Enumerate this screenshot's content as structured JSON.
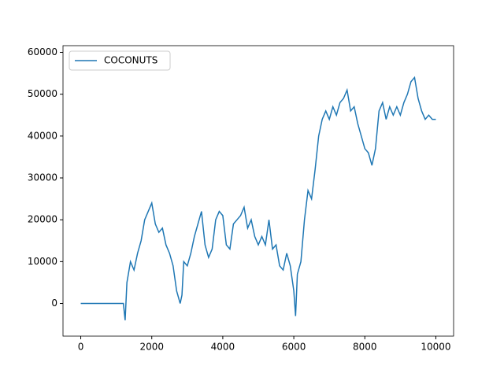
{
  "chart_data": {
    "type": "line",
    "x": [
      0,
      200,
      400,
      600,
      800,
      1000,
      1200,
      1250,
      1300,
      1400,
      1500,
      1600,
      1700,
      1800,
      1900,
      2000,
      2100,
      2200,
      2300,
      2400,
      2500,
      2600,
      2700,
      2800,
      2850,
      2900,
      3000,
      3100,
      3200,
      3300,
      3400,
      3500,
      3600,
      3700,
      3800,
      3900,
      4000,
      4100,
      4200,
      4300,
      4400,
      4500,
      4600,
      4700,
      4800,
      4900,
      5000,
      5100,
      5200,
      5300,
      5400,
      5500,
      5600,
      5700,
      5800,
      5900,
      6000,
      6050,
      6100,
      6200,
      6300,
      6400,
      6500,
      6600,
      6700,
      6800,
      6900,
      7000,
      7100,
      7200,
      7300,
      7400,
      7500,
      7600,
      7700,
      7800,
      7900,
      8000,
      8100,
      8200,
      8300,
      8400,
      8500,
      8600,
      8700,
      8800,
      8900,
      9000,
      9100,
      9200,
      9300,
      9400,
      9500,
      9600,
      9700,
      9800,
      9900,
      10000
    ],
    "series": [
      {
        "name": "COCONUTS",
        "color": "#1f77b4",
        "values": [
          0,
          0,
          0,
          0,
          0,
          0,
          0,
          -4000,
          5000,
          10000,
          8000,
          12000,
          15000,
          20000,
          22000,
          24000,
          19000,
          17000,
          18000,
          14000,
          12000,
          9000,
          3000,
          0,
          2000,
          10000,
          9000,
          12000,
          16000,
          19000,
          22000,
          14000,
          11000,
          13000,
          20000,
          22000,
          21000,
          14000,
          13000,
          19000,
          20000,
          21000,
          23000,
          18000,
          20000,
          16000,
          14000,
          16000,
          14000,
          20000,
          13000,
          14000,
          9000,
          8000,
          12000,
          9000,
          3000,
          -3000,
          7000,
          10000,
          20000,
          27000,
          25000,
          32000,
          40000,
          44000,
          46000,
          44000,
          47000,
          45000,
          48000,
          49000,
          51000,
          46000,
          47000,
          43000,
          40000,
          37000,
          36000,
          33000,
          37000,
          46000,
          48000,
          44000,
          47000,
          45000,
          47000,
          45000,
          48000,
          50000,
          53000,
          54000,
          49000,
          46000,
          44000,
          45000,
          44000,
          44000
        ]
      }
    ],
    "xlim": [
      -500,
      10500
    ],
    "xticks": [
      0,
      2000,
      4000,
      6000,
      8000,
      10000
    ],
    "ylim": [
      -7800,
      61600
    ],
    "yticks": [
      0,
      10000,
      20000,
      30000,
      40000,
      50000,
      60000
    ],
    "legend": "upper-left"
  }
}
